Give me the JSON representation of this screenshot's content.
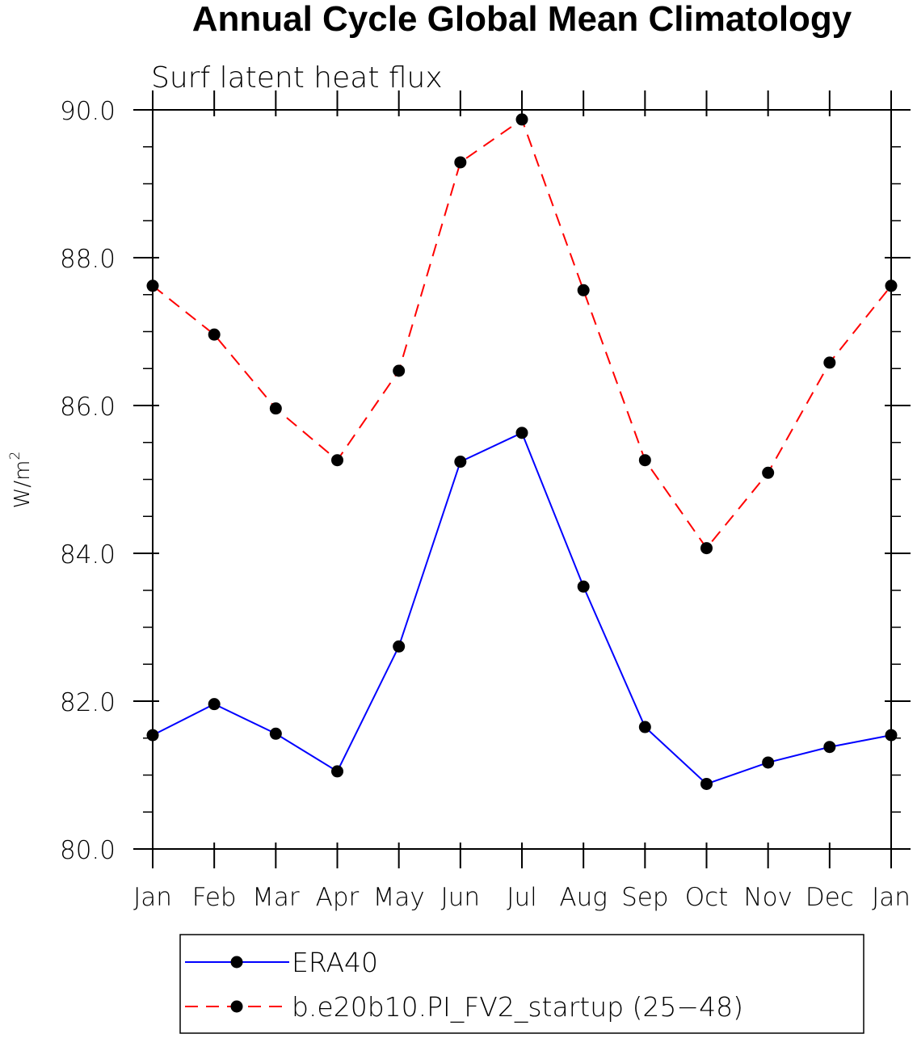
{
  "chart_data": {
    "type": "line",
    "title": "Annual Cycle Global Mean Climatology",
    "subtitle": "Surf latent heat flux",
    "ylabel": "W/m",
    "ylabel_superscript": "2",
    "categories": [
      "Jan",
      "Feb",
      "Mar",
      "Apr",
      "May",
      "Jun",
      "Jul",
      "Aug",
      "Sep",
      "Oct",
      "Nov",
      "Dec",
      "Jan"
    ],
    "ylim": [
      80.0,
      90.0
    ],
    "yticks": [
      "80.0",
      "82.0",
      "84.0",
      "86.0",
      "88.0",
      "90.0"
    ],
    "series": [
      {
        "name": "ERA40",
        "color": "#0000ff",
        "dash": "solid",
        "values": [
          81.54,
          81.96,
          81.56,
          81.05,
          82.74,
          85.24,
          85.63,
          83.55,
          81.65,
          80.88,
          81.17,
          81.38,
          81.54
        ]
      },
      {
        "name": "b.e20b10.PI_FV2_startup (25−48)",
        "color": "#ff0000",
        "dash": "dashed",
        "values": [
          87.62,
          86.96,
          85.96,
          85.26,
          86.47,
          89.29,
          89.87,
          87.56,
          85.26,
          84.07,
          85.09,
          86.58,
          87.62
        ]
      }
    ],
    "grid": false,
    "legend_position": "bottom"
  }
}
